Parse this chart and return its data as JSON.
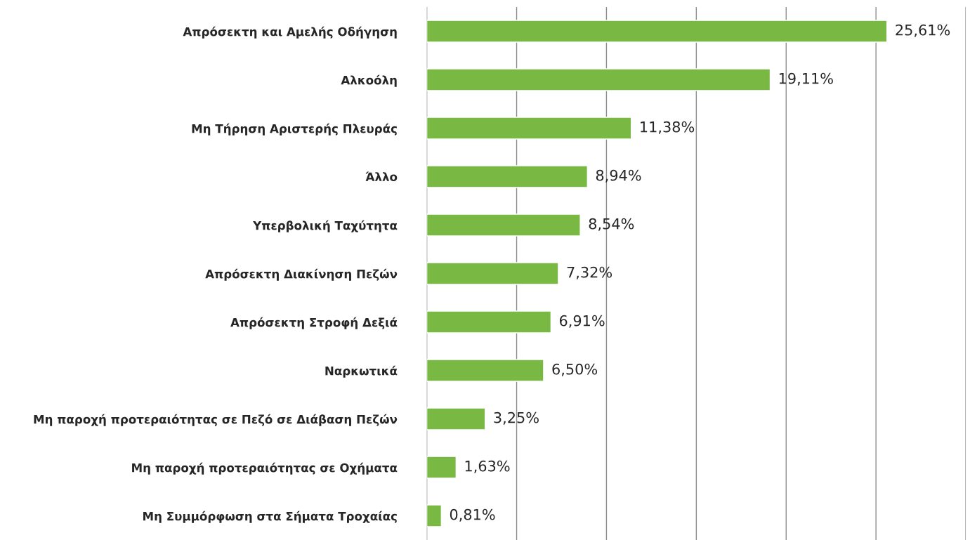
{
  "chart_data": {
    "type": "bar",
    "orientation": "horizontal",
    "categories": [
      "Απρόσεκτη και Αμελής Οδήγηση",
      "Αλκοόλη",
      "Μη Τήρηση Αριστερής Πλευράς",
      "Άλλο",
      "Υπερβολική Ταχύτητα",
      "Απρόσεκτη Διακίνηση Πεζών",
      "Απρόσεκτη Στροφή Δεξιά",
      "Ναρκωτικά",
      "Μη παροχή προτεραιότητας σε Πεζό σε Διάβαση Πεζών",
      "Μη παροχή προτεραιότητας σε Οχήματα",
      "Μη Συμμόρφωση στα Σήματα Τροχαίας"
    ],
    "values": [
      25.61,
      19.11,
      11.38,
      8.94,
      8.54,
      7.32,
      6.91,
      6.5,
      3.25,
      1.63,
      0.81
    ],
    "value_labels": [
      "25,61%",
      "19,11%",
      "11,38%",
      "8,94%",
      "8,54%",
      "7,32%",
      "6,91%",
      "6,50%",
      "3,25%",
      "1,63%",
      "0,81%"
    ],
    "color": "#78b843",
    "xlim": [
      0,
      30
    ],
    "xticks": [
      {
        "value": 0,
        "label": null
      },
      {
        "value": 5,
        "label": null
      },
      {
        "value": 10,
        "label": null
      },
      {
        "value": 15,
        "label": null
      },
      {
        "value": 20,
        "label": null
      },
      {
        "value": 25,
        "label": null
      },
      {
        "value": 30,
        "label": null
      }
    ],
    "grid": "x",
    "tick_labels": "y",
    "legend": false
  }
}
